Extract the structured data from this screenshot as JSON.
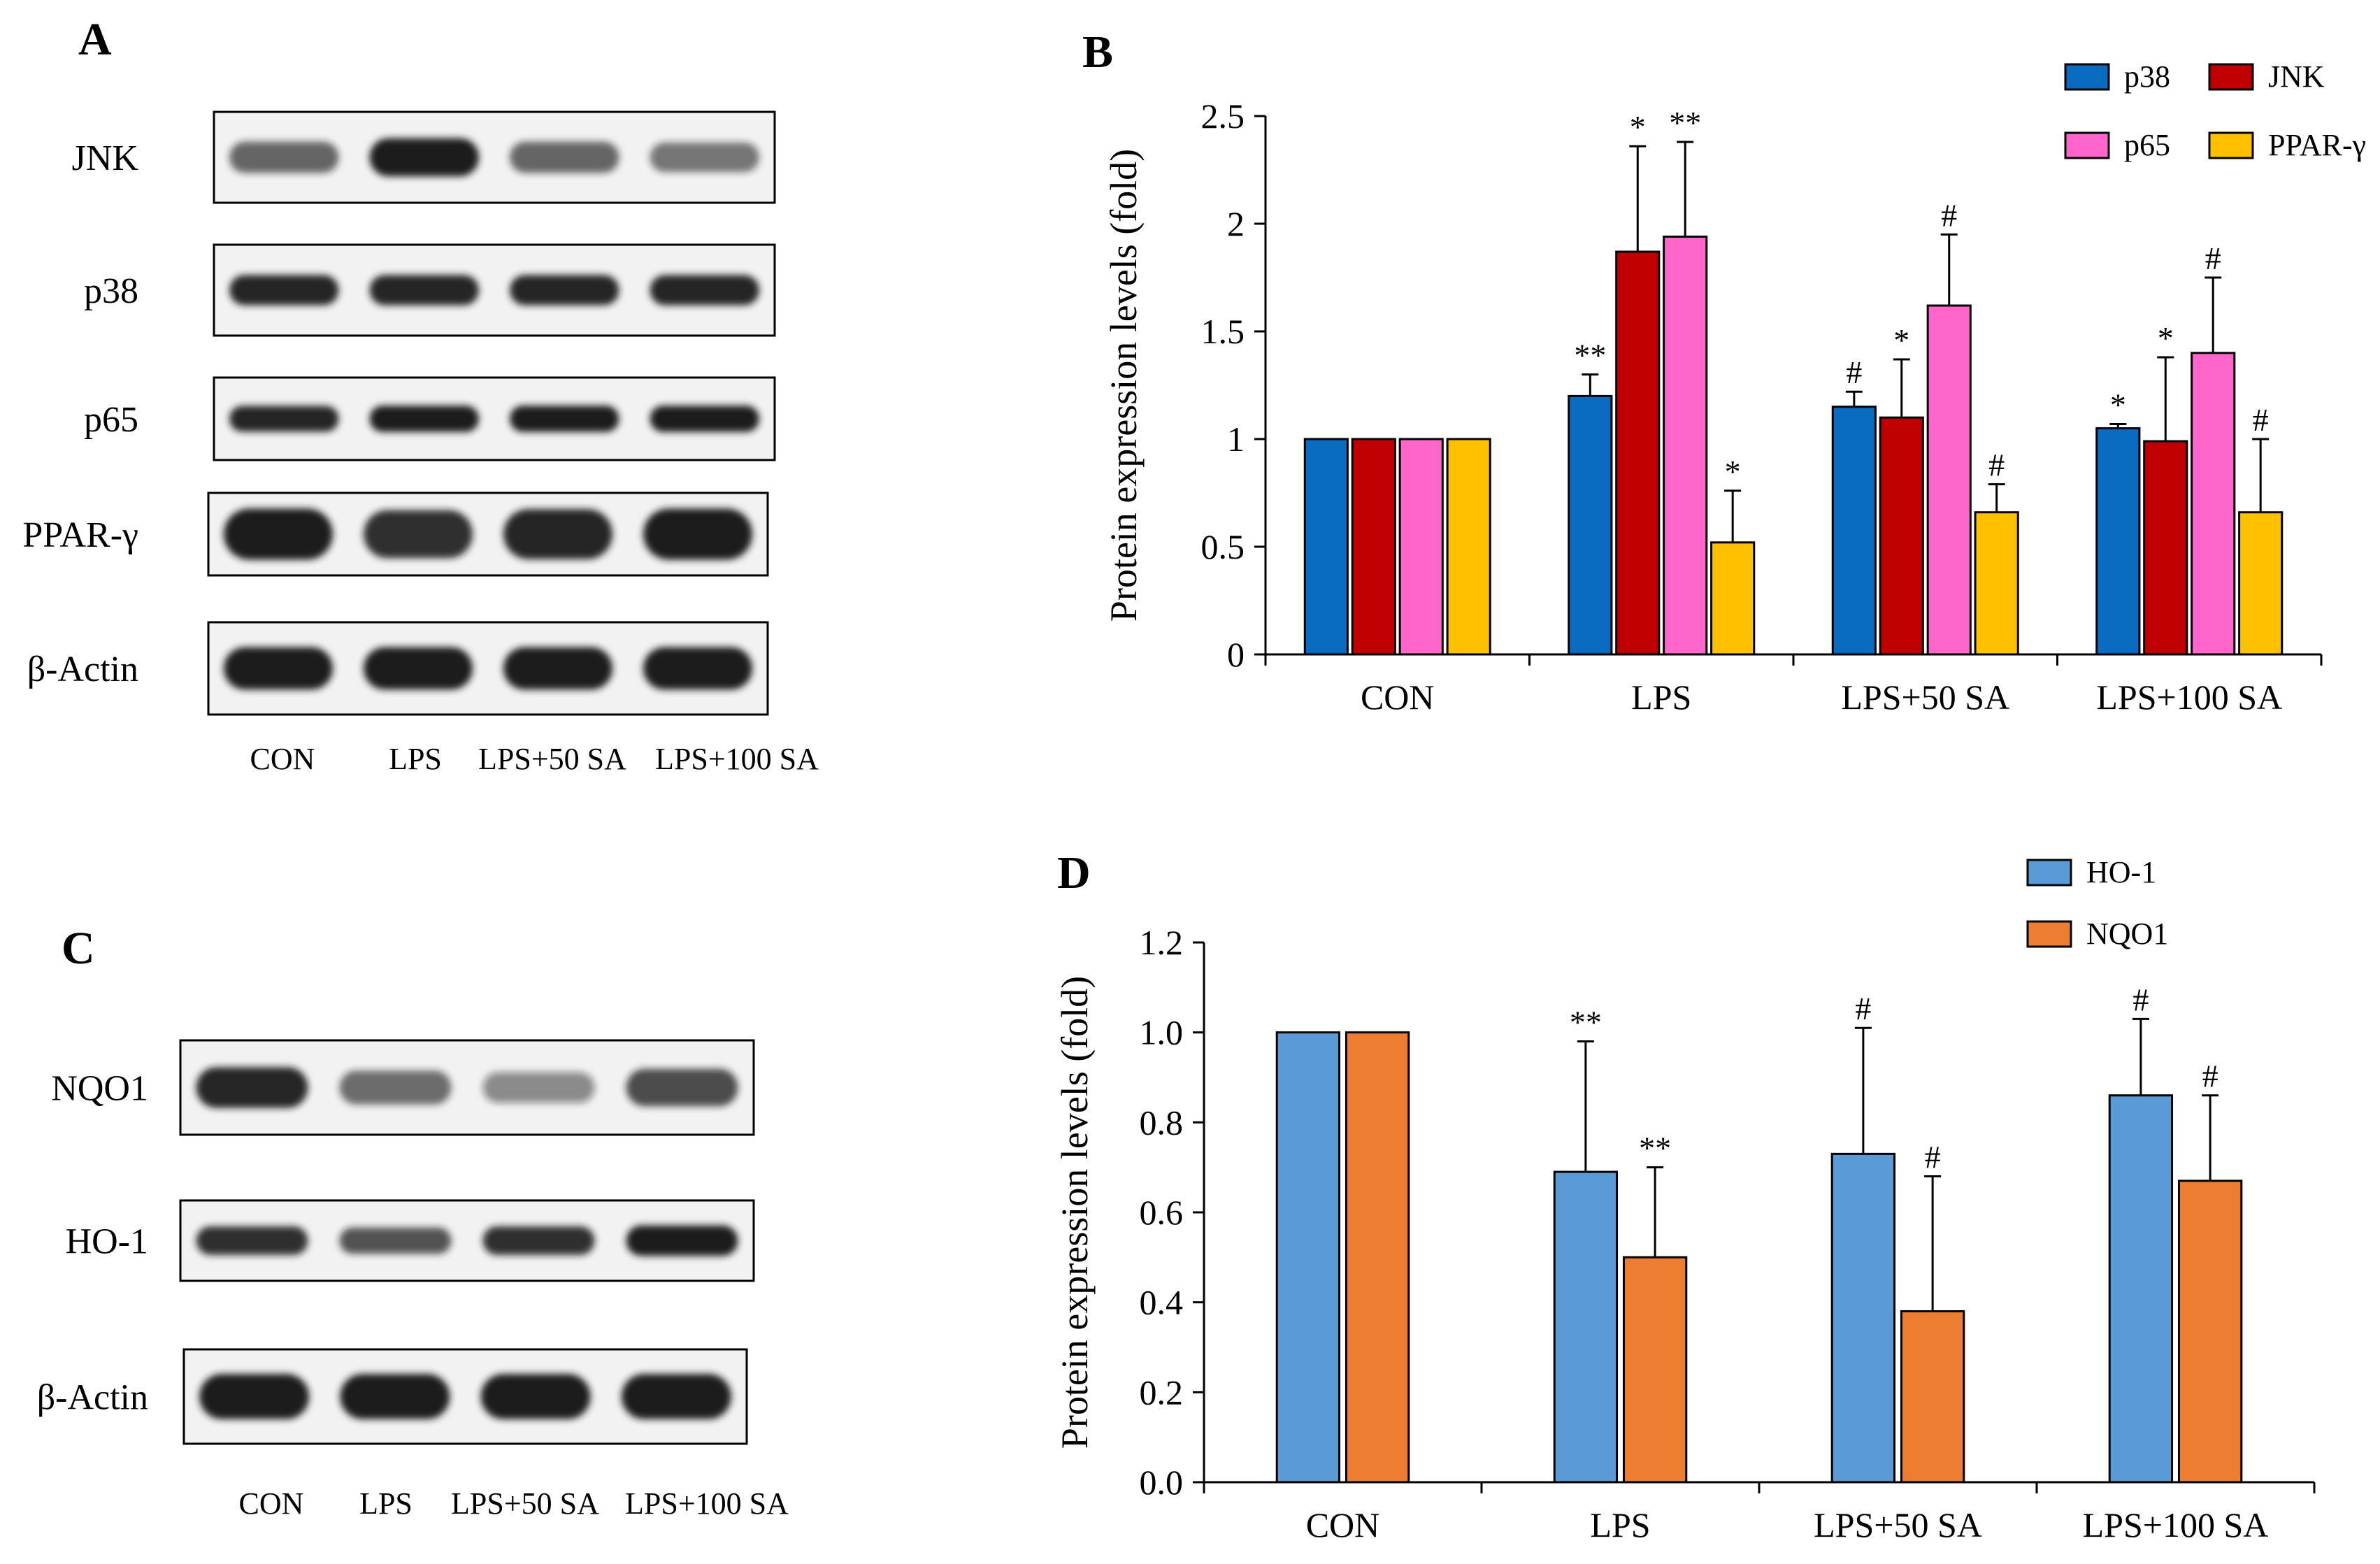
{
  "colors": {
    "p38": "#0a6cc0",
    "JNK": "#c00000",
    "p65": "#ff66cc",
    "PPAR": "#ffc000",
    "HO1": "#5b9bd5",
    "NQO1": "#ed7d31",
    "blot_bg": "#f2f2f2",
    "blot_band": "#1a1a1a",
    "axis": "#000000"
  },
  "panel_A": {
    "label": "A",
    "rows": [
      {
        "name": "JNK",
        "label": "JNK",
        "intensity": [
          0.55,
          1.0,
          0.55,
          0.45
        ]
      },
      {
        "name": "p38",
        "label": "p38",
        "intensity": [
          0.95,
          0.95,
          0.95,
          0.95
        ]
      },
      {
        "name": "p65",
        "label": "p65",
        "intensity": [
          0.95,
          1.0,
          1.0,
          1.0
        ]
      },
      {
        "name": "ppar",
        "label": "PPAR-γ",
        "intensity": [
          1.0,
          0.85,
          0.95,
          1.0
        ]
      },
      {
        "name": "actin",
        "label": "β-Actin",
        "intensity": [
          1.0,
          1.0,
          1.0,
          1.0
        ]
      }
    ],
    "lanes": [
      "CON",
      "LPS",
      "LPS+50 SA",
      "LPS+100 SA"
    ]
  },
  "panel_C": {
    "label": "C",
    "rows": [
      {
        "name": "nqo1",
        "label": "NQO1",
        "intensity": [
          0.9,
          0.5,
          0.3,
          0.7
        ]
      },
      {
        "name": "ho1",
        "label": "HO-1",
        "intensity": [
          0.85,
          0.65,
          0.85,
          1.0
        ]
      },
      {
        "name": "actin",
        "label": "β-Actin",
        "intensity": [
          1.0,
          1.0,
          1.0,
          1.0
        ]
      }
    ],
    "lanes": [
      "CON",
      "LPS",
      "LPS+50 SA",
      "LPS+100 SA"
    ]
  },
  "chart_data": [
    {
      "panel": "B",
      "type": "bar",
      "title": "",
      "xlabel": "",
      "ylabel": "Protein expression levels (fold)",
      "categories": [
        "CON",
        "LPS",
        "LPS+50 SA",
        "LPS+100 SA"
      ],
      "ylim": [
        0,
        2.5
      ],
      "yticks": [
        "0",
        "0.5",
        "1",
        "1.5",
        "2",
        "2.5"
      ],
      "legend_position": "top-right",
      "series": [
        {
          "name": "p38",
          "values": [
            1.0,
            1.2,
            1.15,
            1.05
          ],
          "errors": [
            0,
            0.1,
            0.07,
            0.02
          ],
          "marks": [
            "",
            "**",
            "#",
            "*"
          ]
        },
        {
          "name": "JNK",
          "values": [
            1.0,
            1.87,
            1.1,
            0.99
          ],
          "errors": [
            0,
            0.49,
            0.27,
            0.39
          ],
          "marks": [
            "",
            "*",
            "*",
            "*"
          ]
        },
        {
          "name": "p65",
          "values": [
            1.0,
            1.94,
            1.62,
            1.4
          ],
          "errors": [
            0,
            0.44,
            0.33,
            0.35
          ],
          "marks": [
            "",
            "**",
            "#",
            "#"
          ]
        },
        {
          "name": "PPAR-γ",
          "values": [
            1.0,
            0.52,
            0.66,
            0.66
          ],
          "errors": [
            0,
            0.24,
            0.13,
            0.34
          ],
          "marks": [
            "",
            "*",
            "#",
            "#"
          ]
        }
      ]
    },
    {
      "panel": "D",
      "type": "bar",
      "title": "",
      "xlabel": "",
      "ylabel": "Protein expression levels (fold)",
      "categories": [
        "CON",
        "LPS",
        "LPS+50 SA",
        "LPS+100 SA"
      ],
      "ylim": [
        0,
        1.2
      ],
      "yticks": [
        "0.0",
        "0.2",
        "0.4",
        "0.6",
        "0.8",
        "1.0",
        "1.2"
      ],
      "legend_position": "top-right",
      "series": [
        {
          "name": "HO-1",
          "values": [
            1.0,
            0.69,
            0.73,
            0.86
          ],
          "errors": [
            0,
            0.29,
            0.28,
            0.17
          ],
          "marks": [
            "",
            "**",
            "#",
            "#"
          ]
        },
        {
          "name": "NQO1",
          "values": [
            1.0,
            0.5,
            0.38,
            0.67
          ],
          "errors": [
            0,
            0.2,
            0.3,
            0.19
          ],
          "marks": [
            "",
            "**",
            "#",
            "#"
          ]
        }
      ]
    }
  ]
}
